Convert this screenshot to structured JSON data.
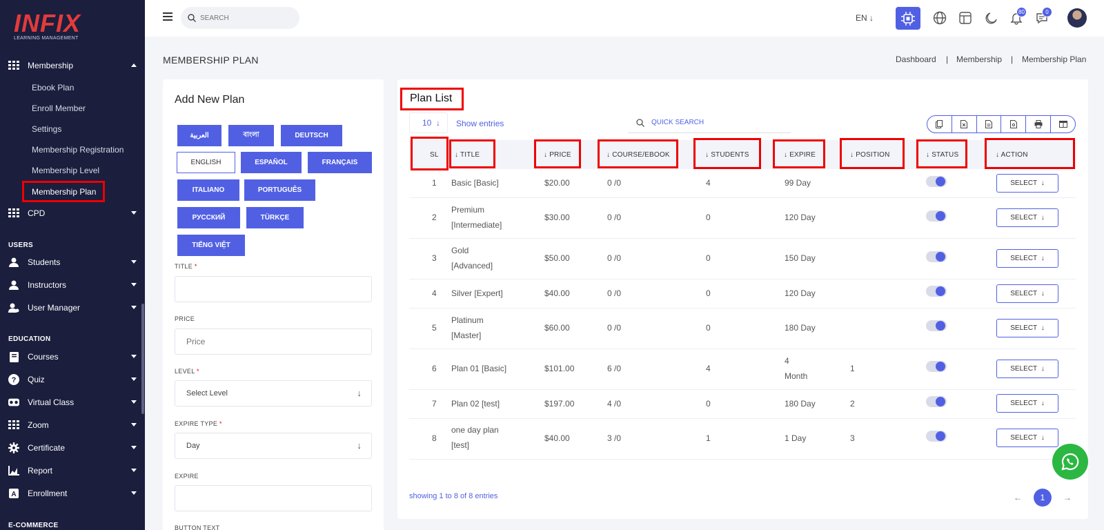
{
  "app": {
    "logo": "INFIX",
    "logo_sub": "LEARNING MANAGEMENT"
  },
  "sidebar": {
    "membership": {
      "label": "Membership",
      "sub": [
        "Ebook Plan",
        "Enroll Member",
        "Settings",
        "Membership Registration",
        "Membership Level",
        "Membership Plan"
      ]
    },
    "cpd": "CPD",
    "users_title": "USERS",
    "users": [
      "Students",
      "Instructors",
      "User Manager"
    ],
    "education_title": "EDUCATION",
    "education": [
      "Courses",
      "Quiz",
      "Virtual Class",
      "Zoom",
      "Certificate",
      "Report",
      "Enrollment"
    ],
    "ecommerce_title": "E-COMMERCE"
  },
  "topbar": {
    "search_placeholder": "SEARCH",
    "lang": "EN",
    "notif_count": "80",
    "msg_count": "0"
  },
  "page": {
    "title": "MEMBERSHIP PLAN",
    "breadcrumb": [
      "Dashboard",
      "|",
      "Membership",
      "|",
      "Membership Plan"
    ]
  },
  "form": {
    "title": "Add New Plan",
    "languages": [
      "العربية",
      "বাংলা",
      "DEUTSCH",
      "ENGLISH",
      "ESPAÑOL",
      "FRANÇAIS",
      "ITALIANO",
      "PORTUGUÊS",
      "РУССКИЙ",
      "TÜRKÇE",
      "TIẾNG VIỆT"
    ],
    "title_label": "TITLE",
    "price_label": "PRICE",
    "price_placeholder": "Price",
    "level_label": "LEVEL",
    "level_value": "Select Level",
    "expire_type_label": "EXPIRE TYPE",
    "expire_type_value": "Day",
    "expire_label": "EXPIRE",
    "button_text_label": "BUTTON TEXT",
    "required_mark": "*"
  },
  "list": {
    "title": "Plan List",
    "entries": "10",
    "show_entries": "Show entries",
    "quick_search": "QUICK SEARCH",
    "columns": [
      "SL",
      "TITLE",
      "PRICE",
      "COURSE/EBOOK",
      "STUDENTS",
      "EXPIRE",
      "POSITION",
      "STATUS",
      "ACTION"
    ],
    "rows": [
      {
        "sl": "1",
        "title1": "Basic [Basic]",
        "title2": "",
        "price": "$20.00",
        "course": "0 /0",
        "students": "4",
        "expire1": "99 Day",
        "expire2": "",
        "position": "",
        "action": "SELECT"
      },
      {
        "sl": "2",
        "title1": "Premium",
        "title2": "[Intermediate]",
        "price": "$30.00",
        "course": "0 /0",
        "students": "0",
        "expire1": "120 Day",
        "expire2": "",
        "position": "",
        "action": "SELECT"
      },
      {
        "sl": "3",
        "title1": "Gold",
        "title2": "[Advanced]",
        "price": "$50.00",
        "course": "0 /0",
        "students": "0",
        "expire1": "150 Day",
        "expire2": "",
        "position": "",
        "action": "SELECT"
      },
      {
        "sl": "4",
        "title1": "Silver [Expert]",
        "title2": "",
        "price": "$40.00",
        "course": "0 /0",
        "students": "0",
        "expire1": "120 Day",
        "expire2": "",
        "position": "",
        "action": "SELECT"
      },
      {
        "sl": "5",
        "title1": "Platinum",
        "title2": "[Master]",
        "price": "$60.00",
        "course": "0 /0",
        "students": "0",
        "expire1": "180 Day",
        "expire2": "",
        "position": "",
        "action": "SELECT"
      },
      {
        "sl": "6",
        "title1": "Plan 01 [Basic]",
        "title2": "",
        "price": "$101.00",
        "course": "6 /0",
        "students": "4",
        "expire1": "4",
        "expire2": "Month",
        "position": "1",
        "action": "SELECT"
      },
      {
        "sl": "7",
        "title1": "Plan 02 [test]",
        "title2": "",
        "price": "$197.00",
        "course": "4 /0",
        "students": "0",
        "expire1": "180 Day",
        "expire2": "",
        "position": "2",
        "action": "SELECT"
      },
      {
        "sl": "8",
        "title1": "one day plan",
        "title2": "[test]",
        "price": "$40.00",
        "course": "3 /0",
        "students": "1",
        "expire1": "1 Day",
        "expire2": "",
        "position": "3",
        "action": "SELECT"
      }
    ],
    "showing": "showing 1 to 8 of 8 entries",
    "page": "1"
  },
  "colors": {
    "accent": "#5160e3",
    "sidebar": "#1b1e3d",
    "highlight": "#e00000",
    "whatsapp": "#2cb742"
  }
}
